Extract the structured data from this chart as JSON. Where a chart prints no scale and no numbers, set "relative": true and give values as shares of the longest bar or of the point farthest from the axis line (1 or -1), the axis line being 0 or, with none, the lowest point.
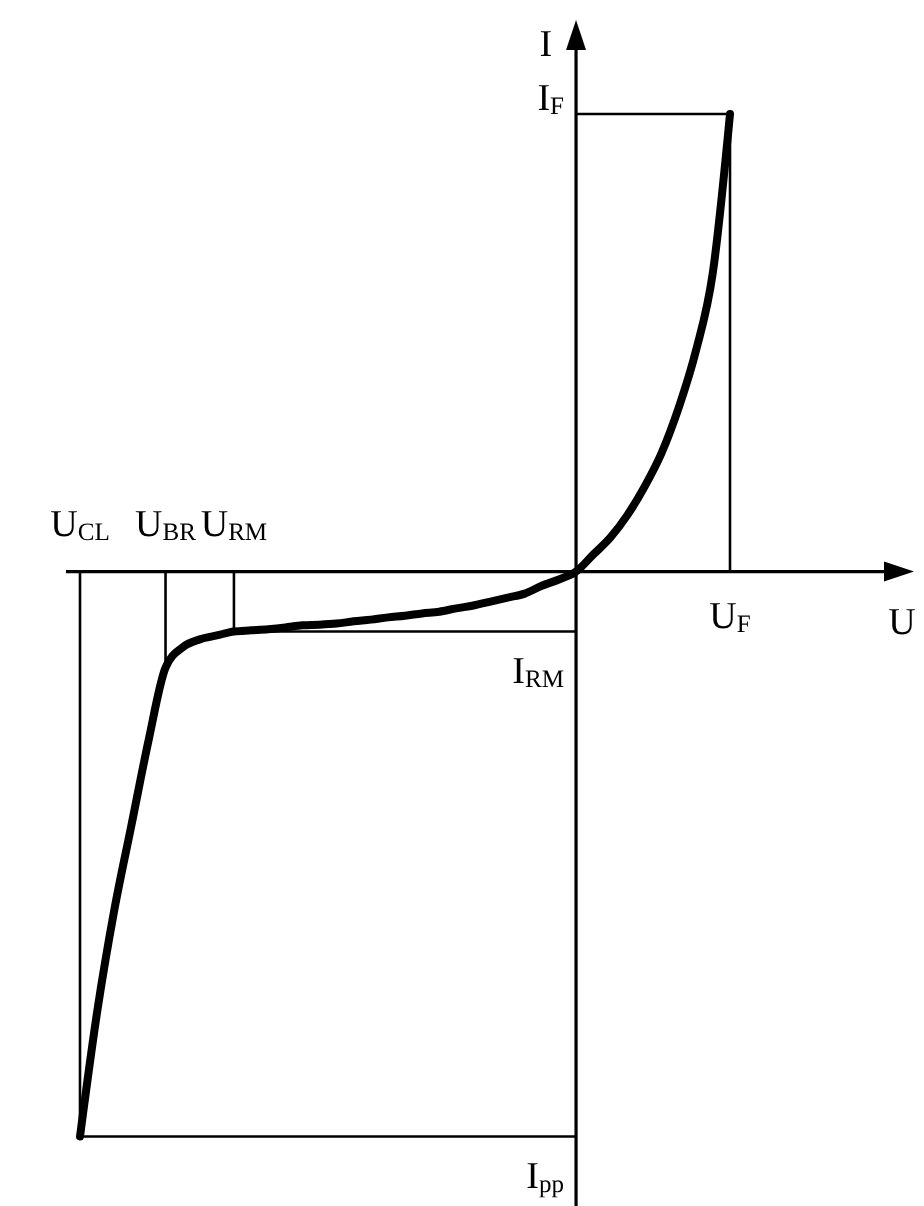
{
  "chart_data": {
    "type": "line",
    "relative": true,
    "xlabel": "U",
    "ylabel": "I",
    "marker": "none",
    "line_style": "solid",
    "categories": [
      null,
      null,
      null,
      null,
      null,
      null,
      null,
      null,
      null,
      null,
      null,
      null,
      null,
      null,
      null,
      null,
      null,
      null,
      null,
      null,
      null,
      null,
      null,
      null,
      null,
      null,
      null,
      null,
      null,
      null,
      null,
      null,
      null,
      null,
      null,
      null,
      null,
      null,
      null
    ],
    "series": [
      {
        "color": "#000000",
        "values": [
          -1,
          -0.78,
          -0.6,
          -0.45,
          -0.3,
          -0.17,
          -0.134,
          -0.12,
          -0.113,
          -0.106,
          -0.104,
          -0.102,
          -0.099,
          -0.095,
          -0.094,
          -0.092,
          -0.088,
          -0.085,
          -0.081,
          -0.078,
          -0.074,
          -0.071,
          -0.065,
          -0.06,
          -0.053,
          -0.046,
          -0.039,
          -0.025,
          -0.014,
          0,
          0.03,
          0.06,
          0.1,
          0.15,
          0.21,
          0.29,
          0.39,
          0.53,
          0.81
        ]
      }
    ],
    "ref_lines": [
      {
        "axis": "y",
        "value": 0.81,
        "label": "I$_{F}$"
      },
      {
        "axis": "y",
        "value": -0.106,
        "label": "I$_{RM}$"
      },
      {
        "axis": "y",
        "value": -1,
        "label": "I$_{pp}$"
      }
    ],
    "annotations": [
      {
        "text": "U$_{CL}$",
        "y": -1
      },
      {
        "text": "U$_{BR}$",
        "y": -0.17
      },
      {
        "text": "U$_{RM}$",
        "y": -0.106
      },
      {
        "text": "U$_{F}$",
        "y": 0.81
      }
    ]
  }
}
